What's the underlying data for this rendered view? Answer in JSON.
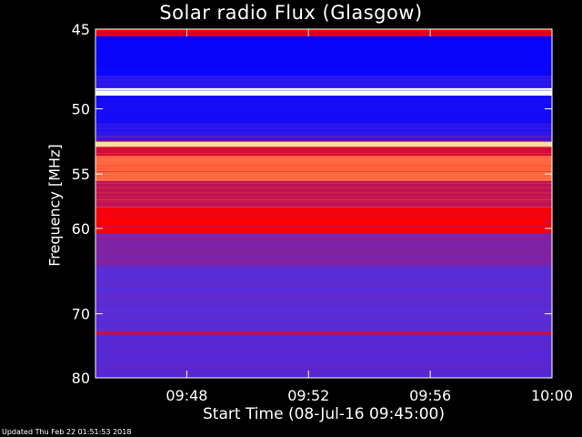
{
  "chart_data": {
    "type": "heatmap",
    "title": "Solar radio Flux (Glasgow)",
    "xlabel": "Start Time (08-Jul-16 09:45:00)",
    "ylabel": "Frequency [MHz]",
    "x_ticks": [
      "09:48",
      "09:52",
      "09:56",
      "10:00"
    ],
    "y_ticks": [
      45,
      50,
      55,
      60,
      70,
      80
    ],
    "xlim": [
      "09:45",
      "10:00"
    ],
    "ylim": [
      80,
      45
    ],
    "y_scale": "reciprocal",
    "colormap": [
      "#000080",
      "#0000ff",
      "#5a2dd6",
      "#ff0000",
      "#ffd080",
      "#ffffff"
    ],
    "bands": [
      {
        "f0": 45,
        "f1": 45.4,
        "level": 0.6
      },
      {
        "f0": 45.4,
        "f1": 47.8,
        "level": 0.22
      },
      {
        "f0": 47.8,
        "f1": 48.6,
        "level": 0.3
      },
      {
        "f0": 48.6,
        "f1": 49.1,
        "level": 1.0
      },
      {
        "f0": 49.1,
        "f1": 51.0,
        "level": 0.25
      },
      {
        "f0": 51.0,
        "f1": 52.4,
        "level": 0.3
      },
      {
        "f0": 52.4,
        "f1": 52.8,
        "level": 0.85
      },
      {
        "f0": 52.8,
        "f1": 53.5,
        "level": 0.55
      },
      {
        "f0": 53.5,
        "f1": 55.6,
        "level": 0.7
      },
      {
        "f0": 55.6,
        "f1": 58.0,
        "level": 0.52
      },
      {
        "f0": 58.0,
        "f1": 60.5,
        "level": 0.6
      },
      {
        "f0": 60.5,
        "f1": 64.0,
        "level": 0.45
      },
      {
        "f0": 64.0,
        "f1": 72.5,
        "level": 0.4
      },
      {
        "f0": 72.5,
        "f1": 73.0,
        "level": 0.55
      },
      {
        "f0": 73.0,
        "f1": 80.0,
        "level": 0.38
      }
    ]
  },
  "footer": "Updated Thu Feb 22 01:51:53 2018"
}
